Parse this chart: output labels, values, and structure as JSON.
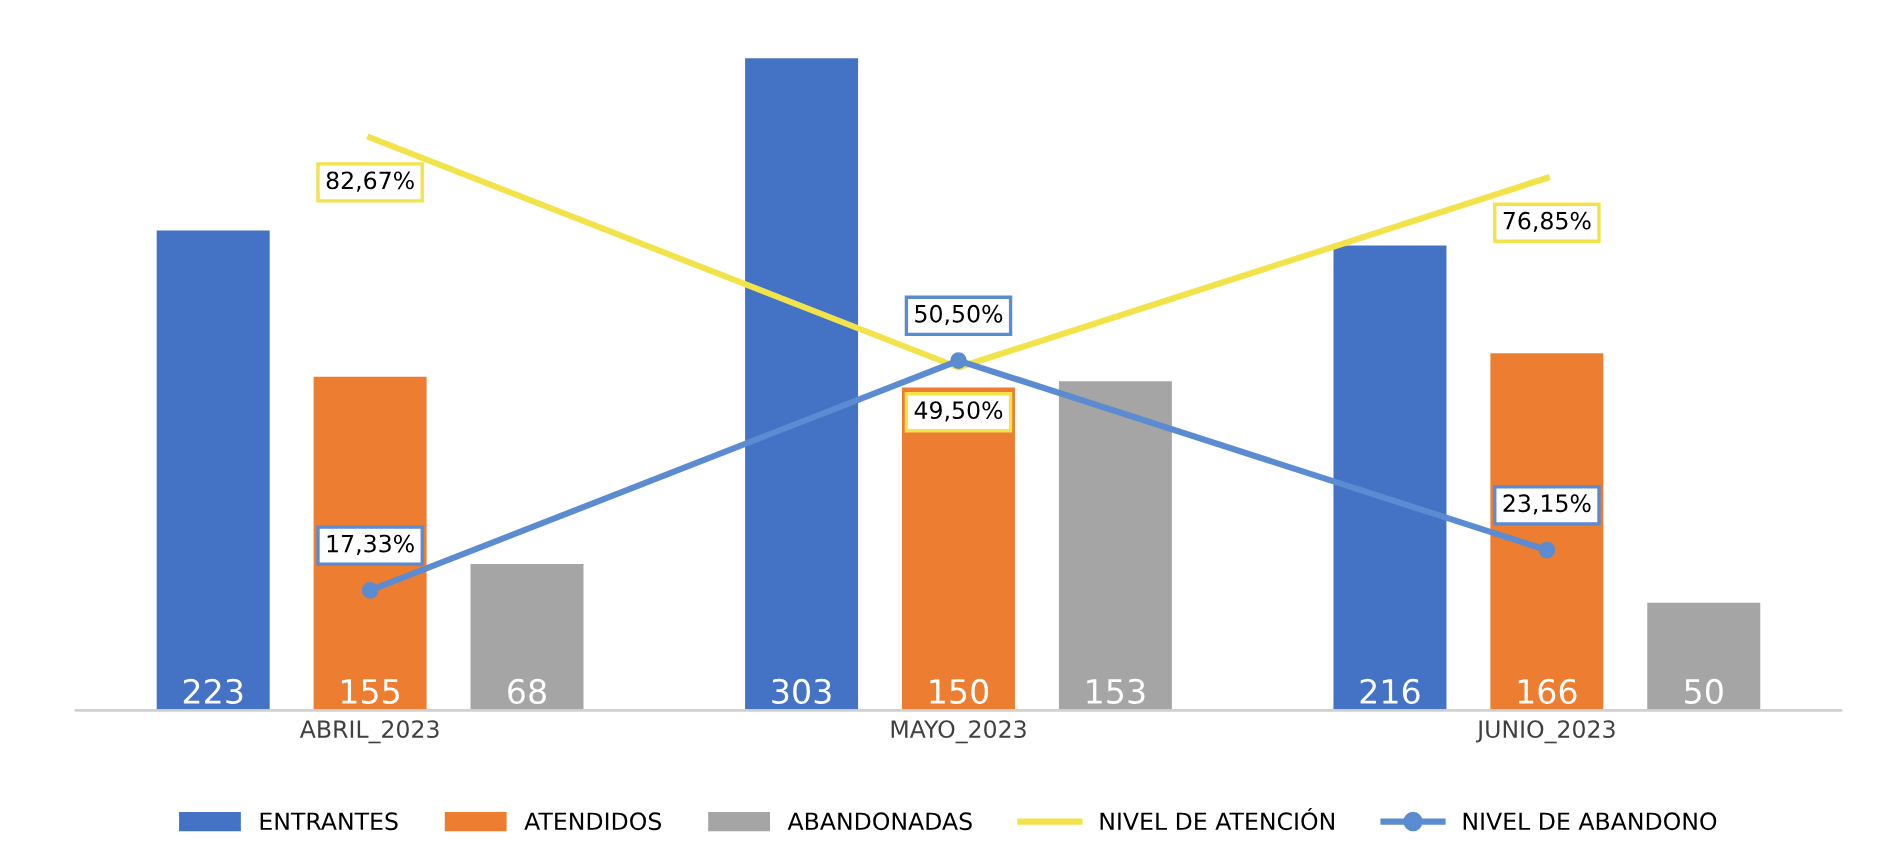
{
  "chart_data": {
    "type": "bar",
    "categories": [
      "ABRIL_2023",
      "MAYO_2023",
      "JUNIO_2023"
    ],
    "data_labels": true,
    "legend": "bottom",
    "grid": false,
    "tick_labels": "x",
    "series": [
      {
        "name": "ENTRANTES",
        "color": "#4472c4",
        "values": [
          223,
          303,
          216
        ]
      },
      {
        "name": "ATENDIDOS",
        "color": "#ed7d31",
        "values": [
          155,
          150,
          166
        ]
      },
      {
        "name": "ABANDONADAS",
        "color": "#a5a5a5",
        "values": [
          68,
          153,
          50
        ]
      },
      {
        "name": "NIVEL DE ATENCIÓN",
        "type": "line",
        "axis": "y2",
        "marker": "none",
        "color": "#f2e34a",
        "values": [
          82.67,
          49.5,
          76.85
        ],
        "value_labels": [
          "82,67%",
          "49,50%",
          "76,85%"
        ]
      },
      {
        "name": "NIVEL DE ABANDONO",
        "type": "line",
        "axis": "y2",
        "marker": "circle",
        "color": "#5b8bd0",
        "values": [
          17.33,
          50.5,
          23.15
        ],
        "value_labels": [
          "17,33%",
          "50,50%",
          "23,15%"
        ]
      }
    ]
  }
}
